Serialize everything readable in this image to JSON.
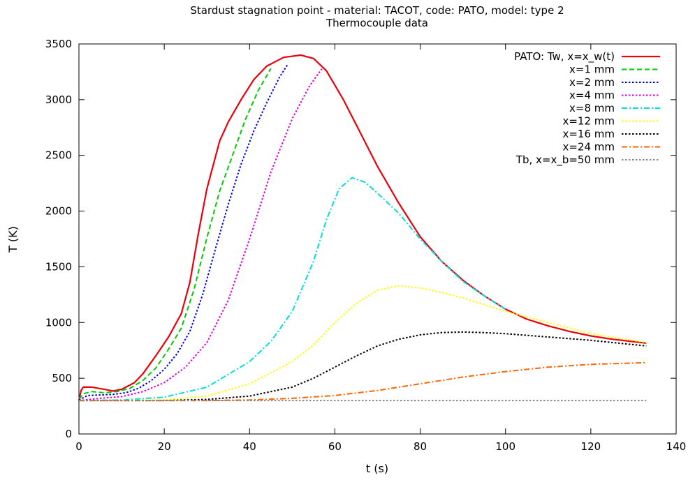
{
  "chart_data": {
    "type": "line",
    "title": "Stardust stagnation point - material: TACOT, code: PATO, model: type 2",
    "subtitle": "Thermocouple data",
    "xlabel": "t (s)",
    "ylabel": "T (K)",
    "xlim": [
      0,
      140
    ],
    "ylim": [
      0,
      3500
    ],
    "xticks": [
      0,
      20,
      40,
      60,
      80,
      100,
      120,
      140
    ],
    "yticks": [
      0,
      500,
      1000,
      1500,
      2000,
      2500,
      3000,
      3500
    ],
    "grid": false,
    "legend_position": "top-right",
    "series": [
      {
        "name": "PATO: Tw, x=x_w(t)",
        "color": "#e8000b",
        "dash": "solid",
        "points": [
          [
            0,
            300
          ],
          [
            0.5,
            390
          ],
          [
            1,
            420
          ],
          [
            3,
            420
          ],
          [
            6,
            400
          ],
          [
            8,
            385
          ],
          [
            10,
            400
          ],
          [
            13,
            460
          ],
          [
            15,
            540
          ],
          [
            18,
            700
          ],
          [
            21,
            870
          ],
          [
            24,
            1080
          ],
          [
            26,
            1360
          ],
          [
            28,
            1800
          ],
          [
            30,
            2200
          ],
          [
            33,
            2630
          ],
          [
            35,
            2800
          ],
          [
            38,
            3000
          ],
          [
            41,
            3180
          ],
          [
            44,
            3300
          ],
          [
            48,
            3380
          ],
          [
            52,
            3400
          ],
          [
            55,
            3370
          ],
          [
            58,
            3260
          ],
          [
            62,
            3000
          ],
          [
            66,
            2700
          ],
          [
            70,
            2400
          ],
          [
            75,
            2070
          ],
          [
            80,
            1770
          ],
          [
            85,
            1550
          ],
          [
            90,
            1380
          ],
          [
            95,
            1240
          ],
          [
            100,
            1120
          ],
          [
            105,
            1030
          ],
          [
            110,
            970
          ],
          [
            115,
            920
          ],
          [
            120,
            880
          ],
          [
            125,
            850
          ],
          [
            133,
            815
          ]
        ]
      },
      {
        "name": "x=1 mm",
        "color": "#00cc00",
        "dash": "dashed",
        "points": [
          [
            0,
            310
          ],
          [
            1,
            360
          ],
          [
            3,
            380
          ],
          [
            6,
            370
          ],
          [
            9,
            380
          ],
          [
            12,
            410
          ],
          [
            15,
            480
          ],
          [
            18,
            590
          ],
          [
            21,
            760
          ],
          [
            24,
            950
          ],
          [
            27,
            1300
          ],
          [
            30,
            1760
          ],
          [
            33,
            2180
          ],
          [
            36,
            2500
          ],
          [
            39,
            2820
          ],
          [
            42,
            3080
          ],
          [
            45,
            3280
          ]
        ]
      },
      {
        "name": "x=2 mm",
        "color": "#0000dd",
        "dash": "dotted",
        "points": [
          [
            0,
            305
          ],
          [
            2,
            345
          ],
          [
            5,
            350
          ],
          [
            8,
            355
          ],
          [
            11,
            370
          ],
          [
            14,
            410
          ],
          [
            17,
            480
          ],
          [
            20,
            580
          ],
          [
            23,
            720
          ],
          [
            26,
            920
          ],
          [
            29,
            1250
          ],
          [
            32,
            1660
          ],
          [
            35,
            2060
          ],
          [
            38,
            2420
          ],
          [
            41,
            2720
          ],
          [
            44,
            2970
          ],
          [
            47,
            3200
          ],
          [
            49,
            3320
          ]
        ]
      },
      {
        "name": "x=4 mm",
        "color": "#dd00dd",
        "dash": "dotted",
        "points": [
          [
            0,
            300
          ],
          [
            5,
            320
          ],
          [
            10,
            335
          ],
          [
            15,
            380
          ],
          [
            20,
            460
          ],
          [
            25,
            600
          ],
          [
            30,
            820
          ],
          [
            35,
            1200
          ],
          [
            40,
            1750
          ],
          [
            45,
            2350
          ],
          [
            50,
            2830
          ],
          [
            54,
            3120
          ],
          [
            57,
            3280
          ]
        ]
      },
      {
        "name": "x=8 mm",
        "color": "#00dddd",
        "dash": "dashdot",
        "points": [
          [
            0,
            300
          ],
          [
            10,
            305
          ],
          [
            20,
            330
          ],
          [
            30,
            420
          ],
          [
            40,
            650
          ],
          [
            45,
            830
          ],
          [
            50,
            1100
          ],
          [
            55,
            1550
          ],
          [
            58,
            1920
          ],
          [
            61,
            2200
          ],
          [
            64,
            2300
          ],
          [
            67,
            2260
          ],
          [
            70,
            2160
          ],
          [
            75,
            1980
          ],
          [
            80,
            1750
          ],
          [
            85,
            1550
          ],
          [
            90,
            1370
          ],
          [
            95,
            1240
          ],
          [
            100,
            1120
          ]
        ]
      },
      {
        "name": "x=12 mm",
        "color": "#ffff00",
        "dash": "dotted",
        "points": [
          [
            0,
            300
          ],
          [
            20,
            305
          ],
          [
            30,
            340
          ],
          [
            40,
            450
          ],
          [
            50,
            650
          ],
          [
            55,
            800
          ],
          [
            60,
            1000
          ],
          [
            65,
            1170
          ],
          [
            70,
            1290
          ],
          [
            75,
            1330
          ],
          [
            80,
            1310
          ],
          [
            85,
            1270
          ],
          [
            90,
            1220
          ],
          [
            95,
            1160
          ],
          [
            100,
            1100
          ],
          [
            110,
            1000
          ],
          [
            120,
            900
          ],
          [
            133,
            820
          ]
        ]
      },
      {
        "name": "x=16 mm",
        "color": "#000000",
        "dash": "dotted",
        "points": [
          [
            0,
            300
          ],
          [
            20,
            300
          ],
          [
            30,
            310
          ],
          [
            40,
            340
          ],
          [
            50,
            420
          ],
          [
            55,
            500
          ],
          [
            60,
            600
          ],
          [
            65,
            700
          ],
          [
            70,
            790
          ],
          [
            75,
            850
          ],
          [
            80,
            890
          ],
          [
            85,
            910
          ],
          [
            90,
            915
          ],
          [
            95,
            910
          ],
          [
            100,
            900
          ],
          [
            110,
            870
          ],
          [
            120,
            840
          ],
          [
            133,
            790
          ]
        ]
      },
      {
        "name": "x=24 mm",
        "color": "#ff6600",
        "dash": "dashdot",
        "points": [
          [
            0,
            300
          ],
          [
            30,
            300
          ],
          [
            40,
            305
          ],
          [
            50,
            320
          ],
          [
            60,
            345
          ],
          [
            70,
            390
          ],
          [
            80,
            450
          ],
          [
            90,
            510
          ],
          [
            100,
            560
          ],
          [
            110,
            600
          ],
          [
            120,
            625
          ],
          [
            133,
            640
          ]
        ]
      },
      {
        "name": "Tb, x=x_b=50 mm",
        "color": "#888888",
        "dash": "dotted",
        "points": [
          [
            0,
            300
          ],
          [
            133,
            300
          ]
        ]
      }
    ]
  }
}
